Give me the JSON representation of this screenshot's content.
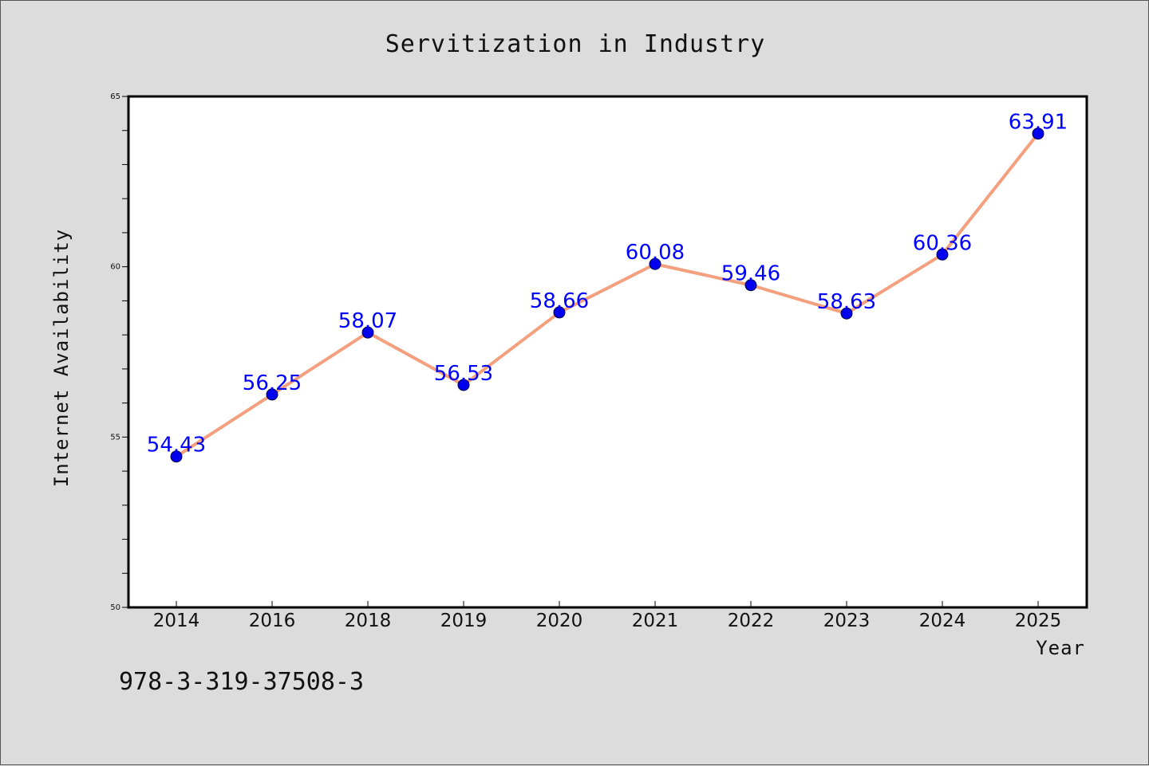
{
  "footer_code": "978-3-319-37508-3",
  "chart_data": {
    "type": "line",
    "title": "Servitization in Industry",
    "xlabel": "Year",
    "ylabel": "Internet Availability",
    "categories": [
      "2014",
      "2016",
      "2018",
      "2019",
      "2020",
      "2021",
      "2022",
      "2023",
      "2024",
      "2025"
    ],
    "values": [
      54.43,
      56.25,
      58.07,
      56.53,
      58.66,
      60.08,
      59.46,
      58.63,
      60.36,
      63.91
    ],
    "data_labels": [
      "54.43",
      "56.25",
      "58.07",
      "56.53",
      "58.66",
      "60.08",
      "59.46",
      "58.63",
      "60.36",
      "63.91"
    ],
    "ylim": [
      50,
      65
    ],
    "yticks": [
      "50",
      "55",
      "60",
      "65"
    ],
    "grid": false,
    "legend": "none",
    "colors": {
      "line": "#f4a07e",
      "marker": "#0000ee",
      "data_label": "#0000ff",
      "plot_background": "#ffffff",
      "page_background": "#dcdcdc"
    }
  }
}
